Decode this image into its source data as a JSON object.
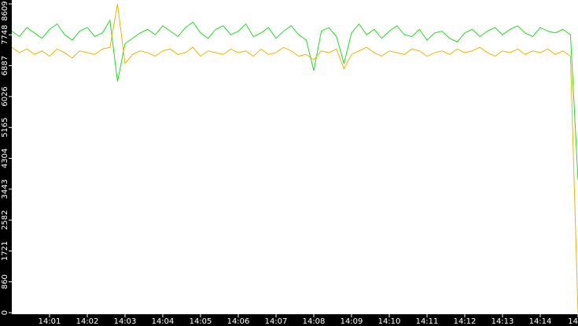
{
  "chart_data": {
    "type": "line",
    "x": [
      0,
      0.2,
      0.4,
      0.6,
      0.8,
      1,
      1.2,
      1.4,
      1.6,
      1.8,
      2,
      2.2,
      2.4,
      2.6,
      2.8,
      3,
      3.2,
      3.4,
      3.6,
      3.8,
      4,
      4.2,
      4.4,
      4.6,
      4.8,
      5,
      5.2,
      5.4,
      5.6,
      5.8,
      6,
      6.2,
      6.4,
      6.6,
      6.8,
      7,
      7.2,
      7.4,
      7.6,
      7.8,
      8,
      8.2,
      8.4,
      8.6,
      8.8,
      9,
      9.2,
      9.4,
      9.6,
      9.8,
      10,
      10.2,
      10.4,
      10.6,
      10.8,
      11,
      11.2,
      11.4,
      11.6,
      11.8,
      12,
      12.2,
      12.4,
      12.6,
      12.8,
      13,
      13.2,
      13.4,
      13.6,
      13.8,
      14,
      14.2,
      14.4,
      14.6,
      14.8,
      15
    ],
    "series": [
      {
        "color": "#22dd22",
        "values": [
          7850,
          7700,
          7950,
          7800,
          7650,
          7900,
          8050,
          7750,
          7600,
          7850,
          7950,
          7700,
          7800,
          8150,
          6450,
          7500,
          7650,
          7800,
          7900,
          7750,
          8000,
          7850,
          7700,
          7950,
          8100,
          7800,
          7650,
          7900,
          8000,
          7750,
          7850,
          8050,
          7700,
          7800,
          7950,
          7650,
          7850,
          8000,
          7750,
          7600,
          6750,
          7850,
          7950,
          7700,
          6950,
          7800,
          8050,
          7750,
          7900,
          7650,
          7850,
          8000,
          7750,
          7700,
          7900,
          7600,
          7800,
          7850,
          7650,
          7550,
          7800,
          7900,
          7700,
          7850,
          7950,
          7750,
          7900,
          8000,
          7800,
          7700,
          7950,
          7850,
          7800,
          7900,
          7750,
          3700
        ]
      },
      {
        "color": "#f0b400",
        "values": [
          7400,
          7250,
          7350,
          7200,
          7300,
          7150,
          7350,
          7250,
          7100,
          7300,
          7250,
          7200,
          7350,
          7400,
          8609,
          6950,
          7200,
          7300,
          7250,
          7150,
          7300,
          7350,
          7200,
          7250,
          7400,
          7150,
          7300,
          7250,
          7200,
          7350,
          7250,
          7300,
          7150,
          7350,
          7200,
          7250,
          7400,
          7300,
          7150,
          7200,
          7050,
          7300,
          7250,
          7350,
          6800,
          7200,
          7300,
          7400,
          7250,
          7150,
          7300,
          7250,
          7200,
          7350,
          7300,
          7150,
          7250,
          7300,
          7200,
          7350,
          7250,
          7300,
          7400,
          7250,
          7150,
          7300,
          7250,
          7350,
          7200,
          7300,
          7250,
          7350,
          7200,
          7300,
          7150,
          0
        ]
      }
    ],
    "xlim": [
      0,
      15
    ],
    "xticks": [
      {
        "value": 1,
        "label": "14:01"
      },
      {
        "value": 2,
        "label": "14:02"
      },
      {
        "value": 3,
        "label": "14:03"
      },
      {
        "value": 4,
        "label": "14:04"
      },
      {
        "value": 5,
        "label": "14:05"
      },
      {
        "value": 6,
        "label": "14:06"
      },
      {
        "value": 7,
        "label": "14:07"
      },
      {
        "value": 8,
        "label": "14:08"
      },
      {
        "value": 9,
        "label": "14:09"
      },
      {
        "value": 10,
        "label": "14:10"
      },
      {
        "value": 11,
        "label": "14:11"
      },
      {
        "value": 12,
        "label": "14:12"
      },
      {
        "value": 13,
        "label": "14:13"
      },
      {
        "value": 14,
        "label": "14:14"
      },
      {
        "value": 15,
        "label": "14"
      }
    ],
    "ylim": [
      0,
      8609
    ],
    "yticks": [
      0,
      860,
      1721,
      2582,
      3443,
      4304,
      5165,
      6026,
      6887,
      7748,
      8609
    ]
  }
}
